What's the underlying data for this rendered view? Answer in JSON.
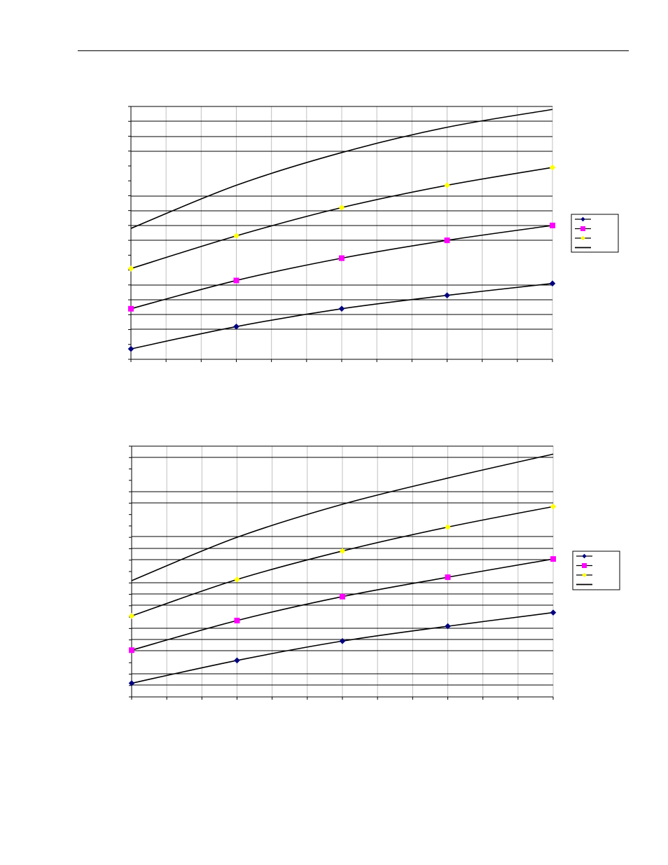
{
  "colors": {
    "series_blue": "#000080",
    "series_magenta": "#ff00ff",
    "series_yellow": "#ffff00",
    "line_black": "#000000",
    "gridline_dark": "#000000",
    "gridline_light": "#c0c0c0"
  },
  "chart_data": [
    {
      "type": "line",
      "title": "",
      "xlabel": "",
      "ylabel": "",
      "xlim": [
        0,
        4
      ],
      "ylim": [
        0,
        17
      ],
      "x": [
        0,
        1,
        2,
        3,
        4
      ],
      "grid": true,
      "legend": "right",
      "series": [
        {
          "marker": "diamond",
          "color": "#000080",
          "values": [
            0.7,
            2.2,
            3.4,
            4.3,
            5.1
          ]
        },
        {
          "marker": "square",
          "color": "#ff00ff",
          "values": [
            3.4,
            5.3,
            6.8,
            8.0,
            9.0
          ]
        },
        {
          "marker": "diamond",
          "color": "#ffff00",
          "values": [
            6.1,
            8.3,
            10.2,
            11.7,
            12.9
          ]
        },
        {
          "marker": "none",
          "color": "#000000",
          "values": [
            8.8,
            11.7,
            13.9,
            15.6,
            16.8
          ]
        }
      ]
    },
    {
      "type": "line",
      "title": "",
      "xlabel": "",
      "ylabel": "",
      "xlim": [
        0,
        4
      ],
      "ylim": [
        0,
        22
      ],
      "x": [
        0,
        1,
        2,
        3,
        4
      ],
      "grid": true,
      "legend": "right",
      "series": [
        {
          "marker": "diamond",
          "color": "#000080",
          "values": [
            1.2,
            3.2,
            4.9,
            6.2,
            7.4
          ]
        },
        {
          "marker": "square",
          "color": "#ff00ff",
          "values": [
            4.1,
            6.7,
            8.8,
            10.5,
            12.1
          ]
        },
        {
          "marker": "diamond",
          "color": "#ffff00",
          "values": [
            7.1,
            10.3,
            12.8,
            14.9,
            16.7
          ]
        },
        {
          "marker": "none",
          "color": "#000000",
          "values": [
            10.2,
            14.0,
            16.9,
            19.2,
            21.3
          ]
        }
      ]
    }
  ]
}
